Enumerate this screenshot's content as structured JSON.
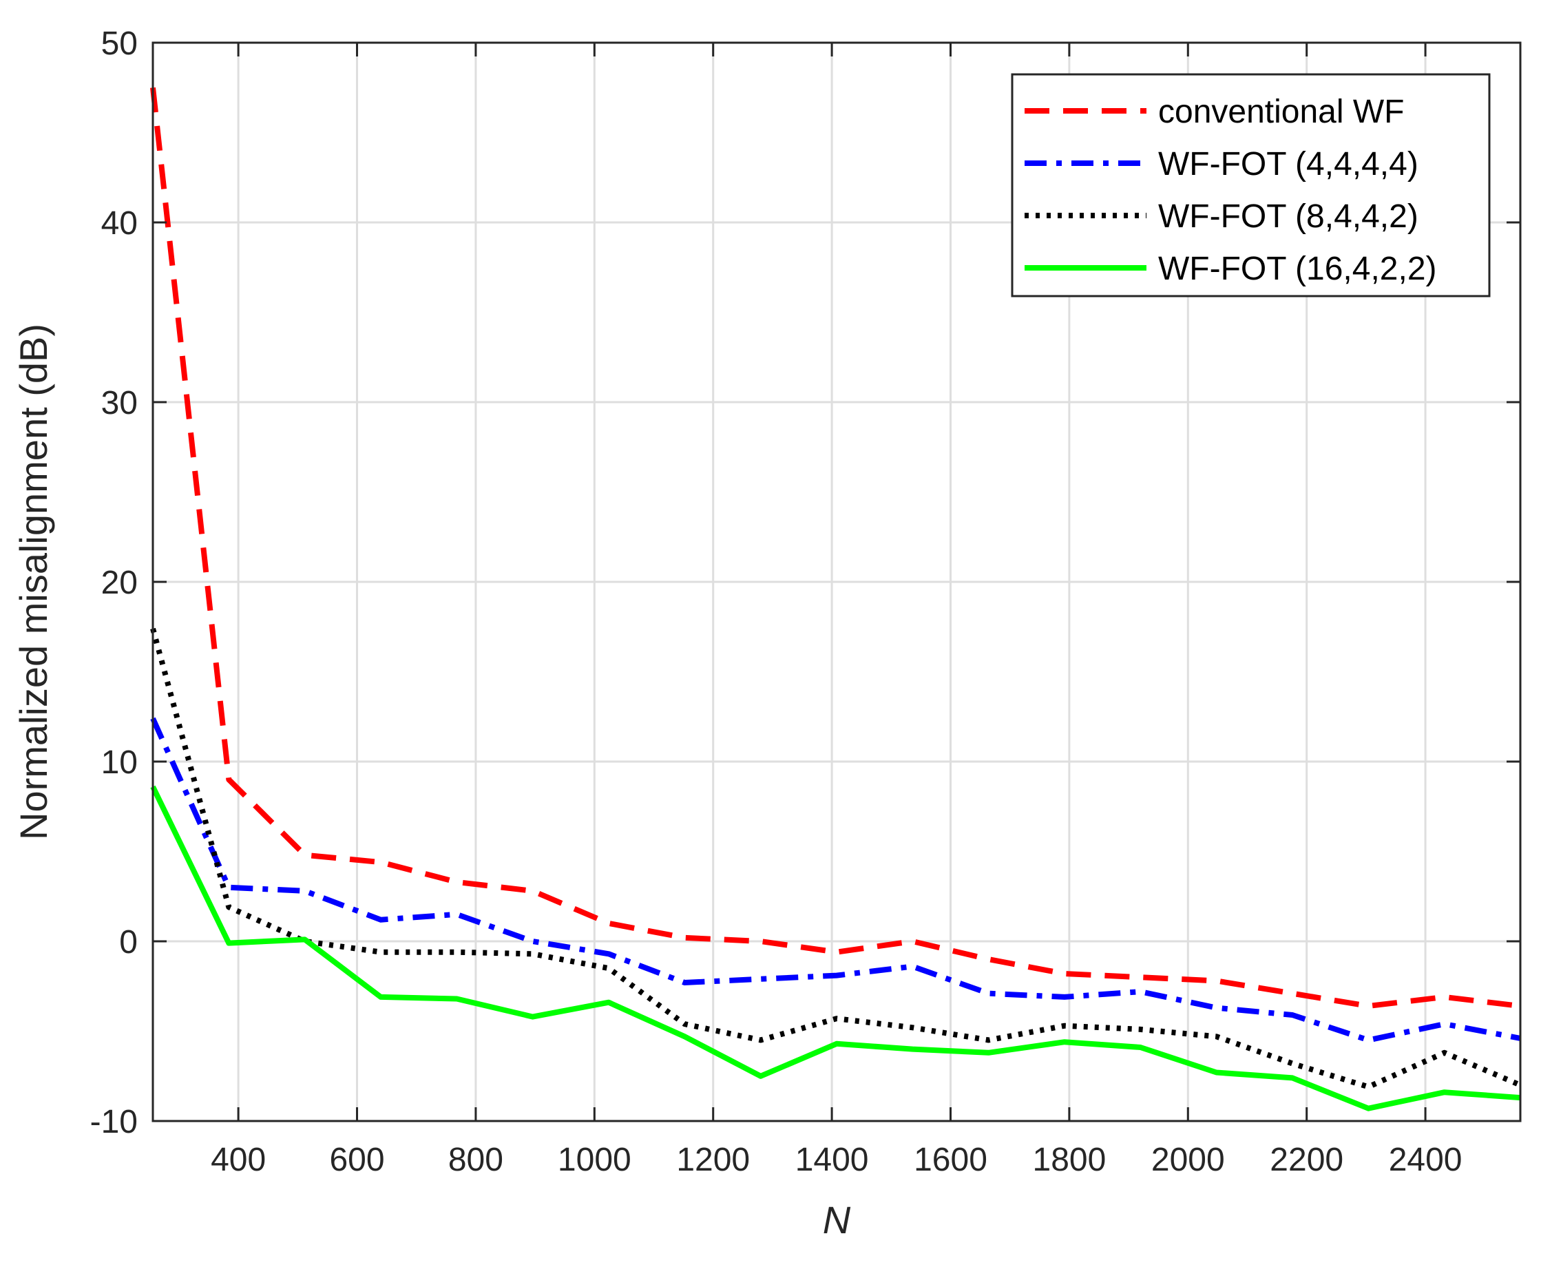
{
  "chart_data": {
    "type": "line",
    "title": "",
    "xlabel": "N",
    "ylabel": "Normalized misalignment (dB)",
    "xlim": [
      256,
      2560
    ],
    "ylim": [
      -10,
      50
    ],
    "xticks": [
      400,
      600,
      800,
      1000,
      1200,
      1400,
      1600,
      1800,
      2000,
      2200,
      2400
    ],
    "yticks": [
      -10,
      0,
      10,
      20,
      30,
      40,
      50
    ],
    "grid": true,
    "legend_position": "top-right",
    "x": [
      256,
      384,
      512,
      640,
      768,
      896,
      1024,
      1152,
      1280,
      1408,
      1536,
      1664,
      1792,
      1920,
      2048,
      2176,
      2304,
      2432,
      2560
    ],
    "series": [
      {
        "name": "conventional WF",
        "color": "#ff0000",
        "style": "dashed",
        "values": [
          47.5,
          9.0,
          4.8,
          4.4,
          3.3,
          2.8,
          1.0,
          0.2,
          0.0,
          -0.6,
          0.0,
          -1.0,
          -1.8,
          -2.0,
          -2.2,
          -2.9,
          -3.6,
          -3.1,
          -3.6
        ]
      },
      {
        "name": "WF-FOT (4,4,4,4)",
        "color": "#0000ff",
        "style": "dashdot",
        "values": [
          12.4,
          3.0,
          2.8,
          1.2,
          1.5,
          0.0,
          -0.7,
          -2.3,
          -2.1,
          -1.9,
          -1.4,
          -2.9,
          -3.1,
          -2.8,
          -3.7,
          -4.1,
          -5.5,
          -4.6,
          -5.4
        ]
      },
      {
        "name": "WF-FOT (8,4,4,2)",
        "color": "#000000",
        "style": "dotted",
        "values": [
          17.4,
          1.9,
          0.0,
          -0.6,
          -0.6,
          -0.7,
          -1.5,
          -4.6,
          -5.5,
          -4.3,
          -4.8,
          -5.5,
          -4.7,
          -4.9,
          -5.3,
          -6.8,
          -8.1,
          -6.2,
          -8.0
        ]
      },
      {
        "name": "WF-FOT (16,4,2,2)",
        "color": "#00ff00",
        "style": "solid",
        "values": [
          8.6,
          -0.1,
          0.1,
          -3.1,
          -3.2,
          -4.2,
          -3.4,
          -5.3,
          -7.5,
          -5.7,
          -6.0,
          -6.2,
          -5.6,
          -5.9,
          -7.3,
          -7.6,
          -9.3,
          -8.4,
          -8.7
        ]
      }
    ]
  }
}
